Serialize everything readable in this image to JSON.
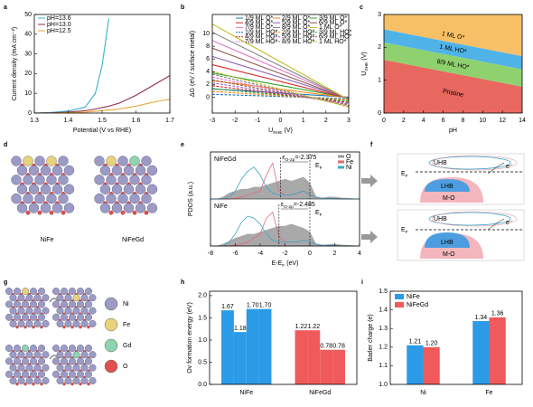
{
  "panel_labels": [
    "a",
    "b",
    "c",
    "d",
    "e",
    "f",
    "g",
    "h",
    "i"
  ],
  "chart_data": [
    {
      "type": "line",
      "xlabel": "Potential (V vs RHE)",
      "ylabel": "Current density (mA cm⁻²)",
      "x": [
        1.3,
        1.35,
        1.4,
        1.45,
        1.48,
        1.5,
        1.52,
        1.55,
        1.6,
        1.65,
        1.7
      ],
      "xlim": [
        1.3,
        1.7
      ],
      "xticks": [
        1.3,
        1.4,
        1.5,
        1.6,
        1.7
      ],
      "ylim": [
        0,
        50
      ],
      "yticks": [
        0,
        10,
        20,
        30,
        40,
        50
      ],
      "legend": "upper left",
      "series": [
        {
          "name": "pH=13.6",
          "color": "#3ab0d0",
          "values": [
            0,
            0.3,
            1,
            3,
            10,
            24,
            48,
            null,
            null,
            null,
            null
          ]
        },
        {
          "name": "pH=13.0",
          "color": "#8e2f4f",
          "values": [
            0,
            0.1,
            0.5,
            1.2,
            2,
            2.8,
            3.5,
            5,
            9,
            14,
            19
          ]
        },
        {
          "name": "pH=12.5",
          "color": "#e8a030",
          "values": [
            0,
            0,
            0.2,
            0.5,
            0.9,
            1.2,
            1.5,
            2,
            3.5,
            5.5,
            7
          ]
        }
      ]
    },
    {
      "type": "line",
      "xlabel": {
        "main": "U",
        "sub": "RHE",
        "rest": " (V)"
      },
      "ylabel": "ΔG (eV / surface metal)",
      "x": [
        -3,
        3
      ],
      "xlim": [
        -3,
        3
      ],
      "xticks": [
        -3,
        -2,
        -1,
        0,
        1,
        2,
        3
      ],
      "ylim": [
        -2.5,
        13
      ],
      "yticks": [
        0,
        2,
        4,
        6,
        8,
        10
      ],
      "legend": "upper right",
      "series": [
        {
          "name": "1/9 ML O*",
          "color": "#1f77b4",
          "dash": false,
          "values": [
            1.3,
            0
          ]
        },
        {
          "name": "2/9 ML O*",
          "color": "#ff7f0e",
          "dash": false,
          "values": [
            2.6,
            -0.1
          ]
        },
        {
          "name": "3/9 ML O*",
          "color": "#2ca02c",
          "dash": false,
          "values": [
            3.8,
            -0.1
          ]
        },
        {
          "name": "4/9 ML O*",
          "color": "#d62728",
          "dash": false,
          "values": [
            5.1,
            -0.2
          ]
        },
        {
          "name": "5/9 ML O*",
          "color": "#9467bd",
          "dash": false,
          "values": [
            6.4,
            -0.2
          ]
        },
        {
          "name": "6/9 ML O*",
          "color": "#8c564b",
          "dash": false,
          "values": [
            7.7,
            -0.3
          ]
        },
        {
          "name": "7/9 ML O*",
          "color": "#e377c2",
          "dash": false,
          "values": [
            8.9,
            -0.3
          ]
        },
        {
          "name": "8/9 ML O*",
          "color": "#7f7f7f",
          "dash": false,
          "values": [
            10.2,
            -0.4
          ]
        },
        {
          "name": "1 ML O*",
          "color": "#bcbd22",
          "dash": false,
          "values": [
            11.5,
            -0.4
          ]
        },
        {
          "name": "1/9 ML HO*",
          "color": "#1f77b4",
          "dash": true,
          "values": [
            0.45,
            -0.25
          ]
        },
        {
          "name": "2/9 ML HO*",
          "color": "#ff7f0e",
          "dash": true,
          "values": [
            0.9,
            -0.45
          ]
        },
        {
          "name": "3/9 ML HO*",
          "color": "#2ca02c",
          "dash": true,
          "values": [
            1.35,
            -0.65
          ]
        },
        {
          "name": "4/9 ML HO*",
          "color": "#d62728",
          "dash": true,
          "values": [
            1.8,
            -0.85
          ]
        },
        {
          "name": "5/9 ML HO*",
          "color": "#9467bd",
          "dash": true,
          "values": [
            2.25,
            -1.05
          ]
        },
        {
          "name": "6/9 ML HO*",
          "color": "#8c564b",
          "dash": true,
          "values": [
            2.7,
            -1.2
          ]
        },
        {
          "name": "7/9 ML HO*",
          "color": "#e377c2",
          "dash": true,
          "values": [
            3.15,
            -1.3
          ]
        },
        {
          "name": "8/9 ML HO*",
          "color": "#7f7f7f",
          "dash": true,
          "values": [
            3.6,
            -1.45
          ]
        },
        {
          "name": "1 ML HO*",
          "color": "#bcbd22",
          "dash": true,
          "values": [
            4.05,
            -1.55
          ]
        }
      ]
    },
    {
      "type": "phase",
      "xlabel": "pH",
      "ylabel": {
        "main": "U",
        "sub": "SHE",
        "rest": " (V)"
      },
      "x": [
        0,
        14
      ],
      "xlim": [
        0,
        14
      ],
      "xticks": [
        0,
        2,
        4,
        6,
        8,
        10,
        12,
        14
      ],
      "ylim": [
        0,
        3
      ],
      "yticks": [
        0,
        1,
        2,
        3
      ],
      "series": [
        {
          "name": "Pristine",
          "color": "#e8675f",
          "values": [
            1.62,
            0.8
          ]
        },
        {
          "name": "8/9 ML HO*",
          "color": "#8fd16f",
          "values": [
            2.15,
            1.33
          ]
        },
        {
          "name": "1 ML HO*",
          "color": "#4fb3e8",
          "values": [
            2.55,
            1.73
          ]
        },
        {
          "name": "1 ML O*",
          "color": "#f7c066"
        }
      ]
    },
    {
      "type": "pdos",
      "xlabel": {
        "main": "E-E",
        "sub": "F",
        "rest": " (eV)"
      },
      "ylabel": "PDOS (a.u.)",
      "fermi": {
        "main": "E",
        "sub": "F"
      },
      "center_symbol": "ε",
      "center_sub": "O-2p",
      "x": [
        -8,
        -7.5,
        -7,
        -6.5,
        -6,
        -5.5,
        -5,
        -4.5,
        -4,
        -3.5,
        -3,
        -2.5,
        -2,
        -1.5,
        -1,
        -0.5,
        0,
        0.5,
        1,
        1.5,
        2,
        2.5,
        3,
        3.5,
        4
      ],
      "xlim": [
        -8,
        4
      ],
      "xticks": [
        -8,
        -6,
        -4,
        -2,
        0,
        2,
        4
      ],
      "ylim": [
        0,
        1
      ],
      "components": [
        {
          "name": "O",
          "color": "#9a9a9a",
          "filled": true
        },
        {
          "name": "Fe",
          "color": "#e06a7a",
          "filled": false
        },
        {
          "name": "Ni",
          "color": "#3aa6c9",
          "filled": false
        }
      ],
      "panels": [
        {
          "name": "NiFeGd",
          "center": -2.375,
          "center_label": "=-2.375",
          "curves": [
            [
              0,
              0,
              0.05,
              0.15,
              0.2,
              0.25,
              0.25,
              0.3,
              0.3,
              0.35,
              0.4,
              0.45,
              0.5,
              0.45,
              0.5,
              0.55,
              0.4,
              0.05,
              0.02,
              0.05,
              0.05,
              0.03,
              0.02,
              0.01,
              0
            ],
            [
              0,
              0,
              0,
              0,
              0.02,
              0.05,
              0.1,
              0.15,
              0.2,
              0.6,
              0.9,
              0.2,
              0.1,
              0.1,
              0.15,
              0.2,
              0.1,
              0.05,
              0.02,
              0.02,
              0.01,
              0,
              0,
              0,
              0
            ],
            [
              0,
              0,
              0,
              0.05,
              0.2,
              0.5,
              0.7,
              0.8,
              0.6,
              0.3,
              0.15,
              0.1,
              0.1,
              0.1,
              0.15,
              0.2,
              0.1,
              0.05,
              0.02,
              0.02,
              0.01,
              0,
              0,
              0,
              0
            ]
          ]
        },
        {
          "name": "NiFe",
          "center": -2.485,
          "center_label": "=-2.485",
          "curves": [
            [
              0,
              0,
              0.05,
              0.12,
              0.2,
              0.25,
              0.3,
              0.3,
              0.35,
              0.4,
              0.45,
              0.5,
              0.5,
              0.55,
              0.5,
              0.45,
              0.35,
              0.05,
              0.02,
              0.04,
              0.05,
              0.03,
              0.02,
              0.01,
              0
            ],
            [
              0,
              0,
              0,
              0,
              0.02,
              0.05,
              0.1,
              0.2,
              0.3,
              0.7,
              0.85,
              0.25,
              0.1,
              0.1,
              0.1,
              0.15,
              0.1,
              0.05,
              0.02,
              0.02,
              0.01,
              0,
              0,
              0,
              0
            ],
            [
              0,
              0,
              0,
              0.1,
              0.3,
              0.6,
              0.75,
              0.7,
              0.55,
              0.3,
              0.15,
              0.1,
              0.1,
              0.1,
              0.1,
              0.15,
              0.1,
              0.05,
              0.02,
              0.02,
              0.01,
              0,
              0,
              0,
              0
            ]
          ]
        }
      ]
    },
    {
      "type": "bar",
      "ylabel": "Ov formation energy (eV)",
      "categories": [
        "NiFe",
        "NiFeGd"
      ],
      "ylim": [
        0,
        2.1
      ],
      "yticks": [
        {
          "value": 0,
          "label": "0.0"
        },
        {
          "value": 0.5,
          "label": "0.5"
        },
        {
          "value": 1,
          "label": "1.0"
        },
        {
          "value": 1.5,
          "label": "1.5"
        },
        {
          "value": 2,
          "label": "2.0"
        }
      ],
      "groups": [
        {
          "color": "#2b9be8",
          "values": [
            1.67,
            1.18,
            1.7,
            1.7
          ],
          "value_labels": [
            "1.67",
            "1.18",
            "1.70",
            "1.70"
          ]
        },
        {
          "color": "#f05a5a",
          "values": [
            1.22,
            1.22,
            0.78,
            0.78
          ],
          "value_labels": [
            "1.22",
            "1.22",
            "0.78",
            "0.78"
          ]
        }
      ]
    },
    {
      "type": "bar",
      "ylabel": "Bader charge (e)",
      "categories": [
        "Ni",
        "Fe"
      ],
      "legend": "upper left",
      "ylim": [
        1.0,
        1.5
      ],
      "yticks": [
        {
          "value": 1,
          "label": "1.0"
        },
        {
          "value": 1.1,
          "label": "1.1"
        },
        {
          "value": 1.2,
          "label": "1.2"
        },
        {
          "value": 1.3,
          "label": "1.3"
        },
        {
          "value": 1.4,
          "label": "1.4"
        },
        {
          "value": 1.5,
          "label": "1.5"
        }
      ],
      "series": [
        {
          "name": "NiFe",
          "color": "#2b9be8",
          "values": [
            1.21,
            1.34
          ],
          "value_labels": [
            "1.21",
            "1.34"
          ]
        },
        {
          "name": "NiFeGd",
          "color": "#f05a5a",
          "values": [
            1.2,
            1.36
          ],
          "value_labels": [
            "1.20",
            "1.36"
          ]
        }
      ]
    }
  ],
  "d": {
    "labels": [
      "NiFe",
      "NiFeGd"
    ]
  },
  "f": {
    "states": [
      {
        "uhb": "UHB",
        "lhb": "LHB",
        "mo": "M-O",
        "e": "e⁻",
        "ef": {
          "main": "E",
          "sub": "F"
        }
      },
      {
        "uhb": "UHB",
        "lhb": "LHB",
        "mo": "M-O",
        "e": "e⁻",
        "ef": {
          "main": "E",
          "sub": "F"
        }
      }
    ]
  },
  "g": {
    "legend": [
      {
        "name": "Ni",
        "color": "#9b9bc6"
      },
      {
        "name": "Fe",
        "color": "#e8d27a"
      },
      {
        "name": "Gd",
        "color": "#8fd3b0"
      },
      {
        "name": "O",
        "color": "#e05050"
      }
    ]
  }
}
